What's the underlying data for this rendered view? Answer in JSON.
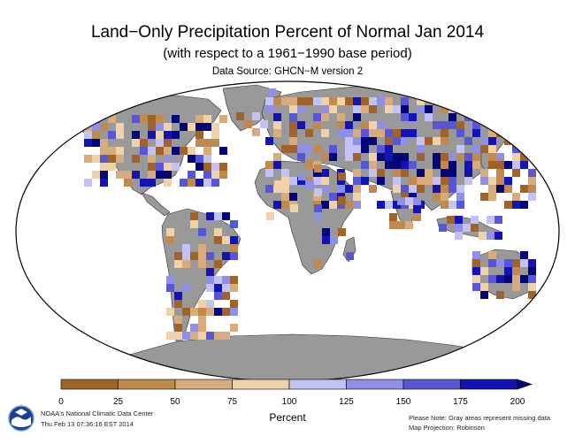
{
  "title": "Land−Only Precipitation Percent of Normal Jan 2014",
  "subtitle": "(with respect to a 1961−1990 base period)",
  "data_source": "Data Source: GHCN−M version 2",
  "map": {
    "projection": "Robinson",
    "ocean_color": "#ffffff",
    "missing_land_color": "#999999",
    "outline_color": "#333333"
  },
  "legend": {
    "title": "Percent",
    "ticks": [
      "0",
      "25",
      "50",
      "75",
      "100",
      "125",
      "150",
      "175",
      "200"
    ],
    "bins": [
      {
        "range": "0-25",
        "color": "#a0642a"
      },
      {
        "range": "25-50",
        "color": "#bf8a50"
      },
      {
        "range": "50-75",
        "color": "#d7ab7b"
      },
      {
        "range": "75-100",
        "color": "#efd1aa"
      },
      {
        "range": "100-125",
        "color": "#c2c2f4"
      },
      {
        "range": "125-150",
        "color": "#8f8fe6"
      },
      {
        "range": "150-175",
        "color": "#5656d6"
      },
      {
        "range": "175-200",
        "color": "#1414b4"
      }
    ],
    "overflow_color": "#05057a"
  },
  "footer": {
    "org": "NOAA's National Climatic Data Center",
    "timestamp": "Thu Feb 13 07:36:16 EST 2014",
    "note": "Please Note: Gray areas represent missing data",
    "projection": "Map Projection: Robinson"
  }
}
